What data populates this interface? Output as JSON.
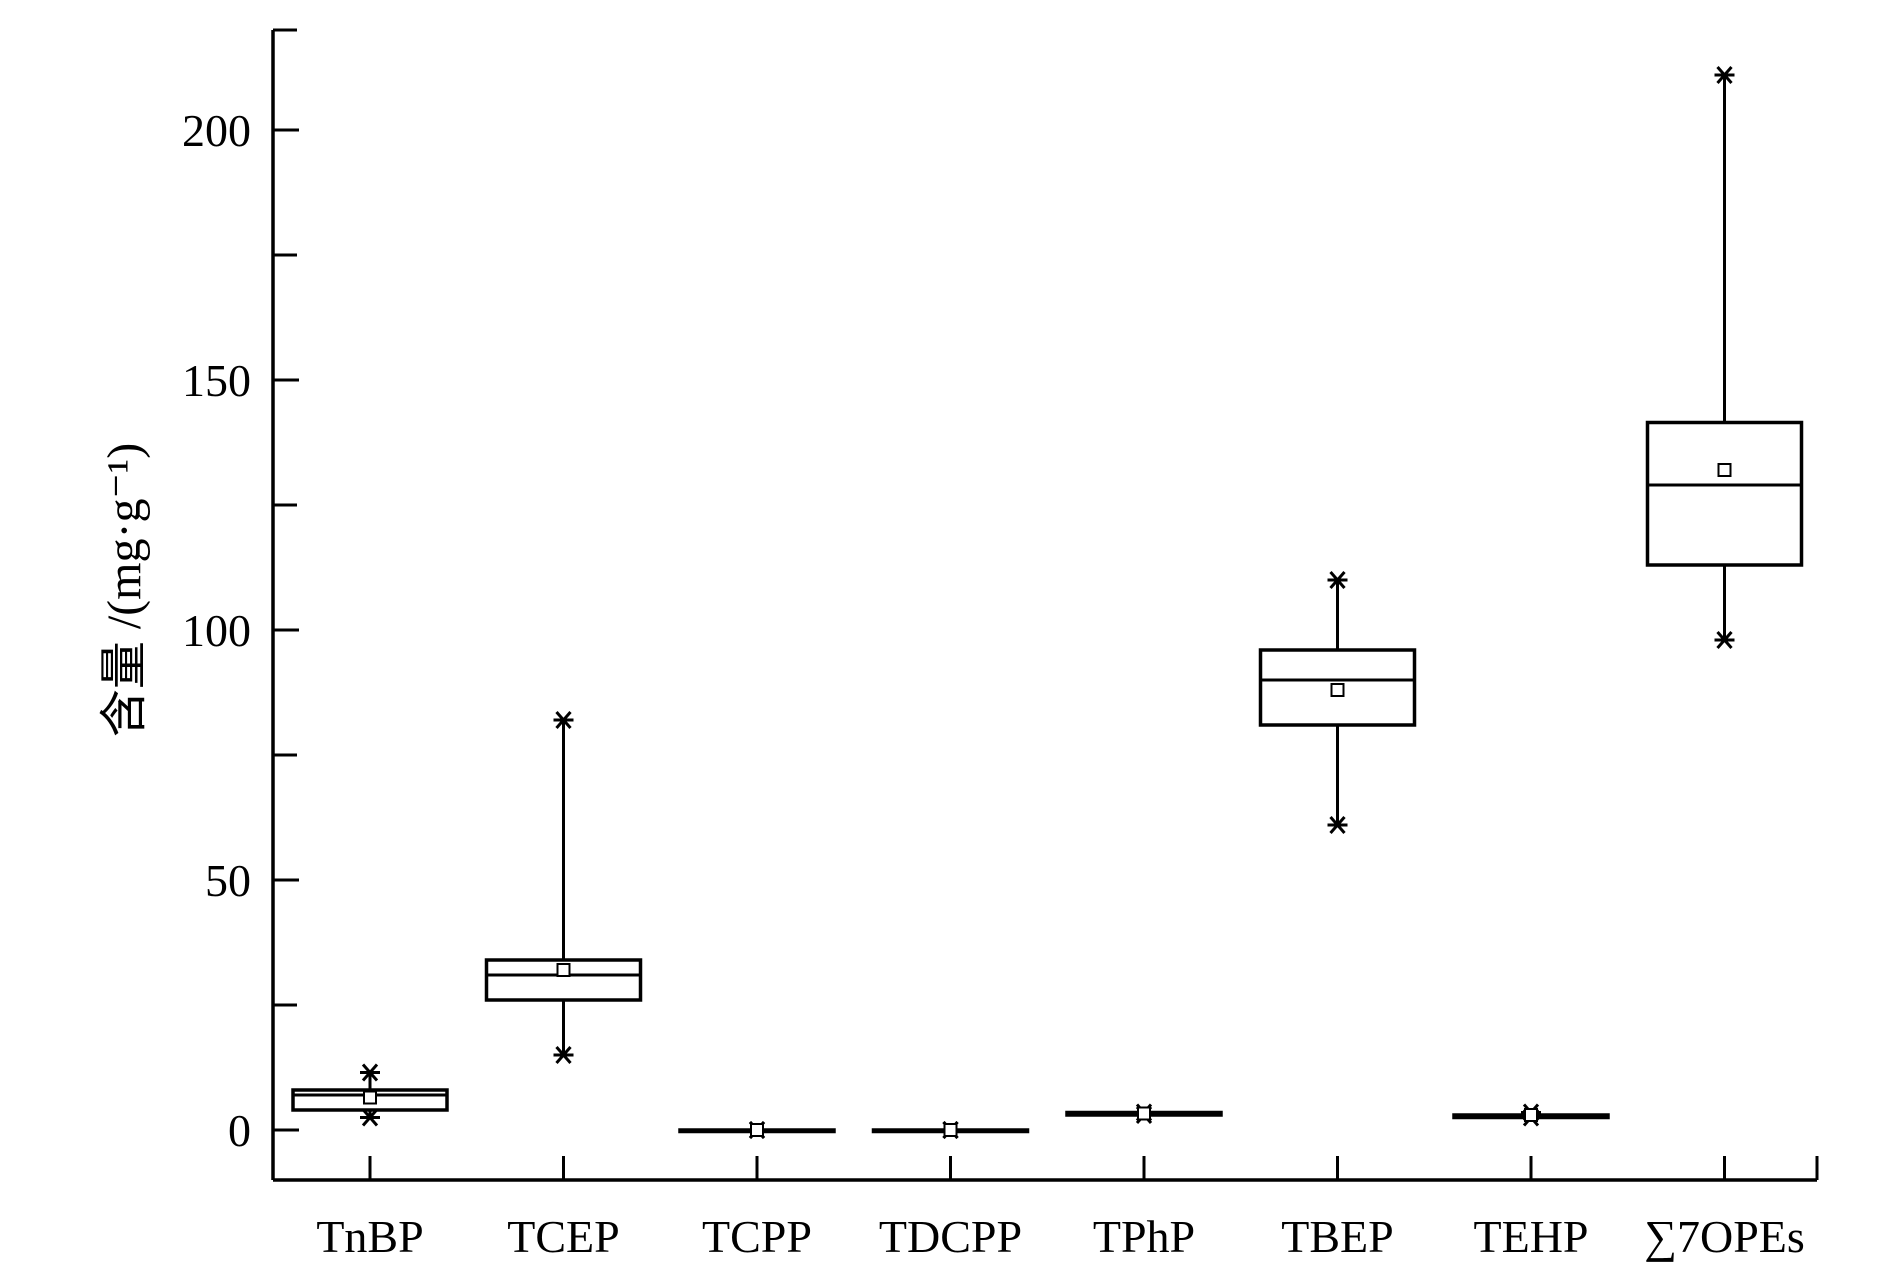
{
  "chart_data": {
    "type": "box",
    "ylabel": "含量 /(mg·g⁻¹)",
    "ylim": [
      -10,
      220
    ],
    "y_ticks": [
      0,
      50,
      100,
      150,
      200
    ],
    "y_minor_ticks": [
      25,
      75,
      125,
      175
    ],
    "categories": [
      "TnBP",
      "TCEP",
      "TCPP",
      "TDCPP",
      "TPhP",
      "TBEP",
      "TEHP",
      "∑7OPEs"
    ],
    "boxes": [
      {
        "name": "TnBP",
        "min": 2.5,
        "q1": 4,
        "median": 7,
        "q3": 8,
        "max": 11.5,
        "mean": 6.5
      },
      {
        "name": "TCEP",
        "min": 15,
        "q1": 26,
        "median": 31,
        "q3": 34,
        "max": 82,
        "mean": 32
      },
      {
        "name": "TCPP",
        "min": 0,
        "q1": 0,
        "median": 0,
        "q3": 0,
        "max": 0,
        "mean": 0
      },
      {
        "name": "TDCPP",
        "min": 0,
        "q1": 0,
        "median": 0,
        "q3": 0,
        "max": 0,
        "mean": 0
      },
      {
        "name": "TPhP",
        "min": 3,
        "q1": 3,
        "median": 3.5,
        "q3": 3.5,
        "max": 3.5,
        "mean": 3.3
      },
      {
        "name": "TBEP",
        "min": 61,
        "q1": 81,
        "median": 90,
        "q3": 96,
        "max": 110,
        "mean": 88
      },
      {
        "name": "TEHP",
        "min": 2.5,
        "q1": 2.5,
        "median": 3,
        "q3": 3,
        "max": 3.5,
        "mean": 3
      },
      {
        "name": "∑7OPEs",
        "min": 98,
        "q1": 113,
        "median": 129,
        "q3": 141.5,
        "max": 211,
        "mean": 132
      }
    ]
  }
}
